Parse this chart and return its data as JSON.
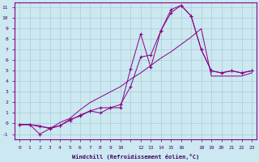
{
  "xlabel": "Windchill (Refroidissement éolien,°C)",
  "bg_color": "#cce8f0",
  "line_color": "#880088",
  "grid_color": "#aaccd8",
  "xlim": [
    0,
    23
  ],
  "ylim": [
    -1.5,
    11.5
  ],
  "xtick_labels": [
    "0",
    "1",
    "2",
    "3",
    "4",
    "5",
    "6",
    "7",
    "8",
    "9",
    "10",
    "12",
    "13",
    "14",
    "15",
    "16",
    " ",
    "18",
    "19",
    "20",
    "21",
    "22",
    "23"
  ],
  "ytick_labels": [
    "-1",
    "0",
    "1",
    "2",
    "3",
    "4",
    "5",
    "6",
    "7",
    "8",
    "9",
    "10",
    "11"
  ],
  "line1_x": [
    0,
    1,
    2,
    3,
    4,
    5,
    6,
    7,
    8,
    9,
    10,
    11,
    12,
    13,
    14,
    15,
    16,
    17,
    18,
    19,
    20,
    21,
    22,
    23
  ],
  "line1_y": [
    -0.1,
    -0.1,
    -1.0,
    -0.5,
    -0.2,
    0.4,
    0.7,
    1.2,
    1.0,
    1.5,
    1.5,
    5.2,
    8.5,
    5.3,
    8.8,
    10.8,
    11.2,
    10.2,
    7.0,
    5.0,
    4.8,
    5.0,
    4.8,
    5.0
  ],
  "line2_x": [
    0,
    1,
    2,
    3,
    4,
    5,
    6,
    7,
    8,
    9,
    10,
    11,
    12,
    13,
    14,
    15,
    16,
    17,
    18,
    19,
    20,
    21,
    22,
    23
  ],
  "line2_y": [
    -0.1,
    -0.1,
    -0.3,
    -0.4,
    -0.2,
    0.3,
    0.8,
    1.2,
    1.5,
    1.5,
    1.8,
    3.5,
    6.3,
    6.5,
    8.8,
    10.5,
    11.2,
    10.2,
    7.0,
    5.0,
    4.8,
    5.0,
    4.8,
    5.0
  ],
  "line3_x": [
    0,
    1,
    2,
    3,
    4,
    5,
    6,
    7,
    8,
    9,
    10,
    11,
    12,
    13,
    14,
    15,
    16,
    17,
    18,
    19,
    20,
    21,
    22,
    23
  ],
  "line3_y": [
    -0.1,
    -0.1,
    -0.2,
    -0.5,
    0.1,
    0.5,
    1.3,
    2.0,
    2.5,
    3.0,
    3.5,
    4.2,
    4.8,
    5.5,
    6.2,
    6.8,
    7.5,
    8.2,
    9.0,
    4.5,
    4.5,
    4.5,
    4.5,
    4.8
  ]
}
